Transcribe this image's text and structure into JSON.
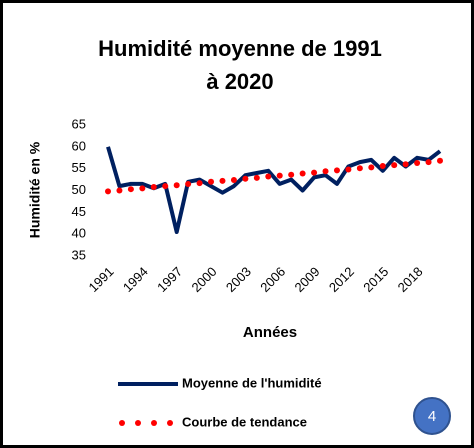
{
  "chart_data": {
    "type": "line",
    "title": [
      "Humidité moyenne de 1991",
      "à 2020"
    ],
    "ylabel": "Humidité en %",
    "xlabel": "Années",
    "x": [
      1991,
      1992,
      1993,
      1994,
      1995,
      1996,
      1997,
      1998,
      1999,
      2000,
      2001,
      2002,
      2003,
      2004,
      2005,
      2006,
      2007,
      2008,
      2009,
      2010,
      2011,
      2012,
      2013,
      2014,
      2015,
      2016,
      2017,
      2018,
      2019,
      2020
    ],
    "series": [
      {
        "name": "Moyenne de l'humidité",
        "color": "#002060",
        "style": "solid",
        "values": [
          60,
          51,
          51.5,
          51.5,
          50.5,
          51.5,
          40.5,
          52,
          52.5,
          51,
          49.5,
          51,
          53.5,
          54,
          54.5,
          51.5,
          52.5,
          50,
          53,
          53.5,
          51.5,
          55.5,
          56.5,
          57,
          54.5,
          57.5,
          55.5,
          57.5,
          57,
          59
        ]
      },
      {
        "name": "Courbe de tendance",
        "color": "#ff0000",
        "style": "dotted",
        "values": [
          49.8,
          50.0,
          50.3,
          50.5,
          50.8,
          51.0,
          51.2,
          51.5,
          51.7,
          52.0,
          52.2,
          52.4,
          52.7,
          52.9,
          53.2,
          53.4,
          53.6,
          53.9,
          54.1,
          54.4,
          54.6,
          54.8,
          55.1,
          55.3,
          55.6,
          55.8,
          56.0,
          56.3,
          56.5,
          56.8
        ]
      }
    ],
    "xlim": [
      1991,
      2020
    ],
    "xticks": [
      1991,
      1994,
      1997,
      2000,
      2003,
      2006,
      2009,
      2012,
      2015,
      2018
    ],
    "ylim": [
      35,
      65
    ],
    "yticks": [
      35,
      40,
      45,
      50,
      55,
      60,
      65
    ],
    "grid": false,
    "badge": "4"
  }
}
